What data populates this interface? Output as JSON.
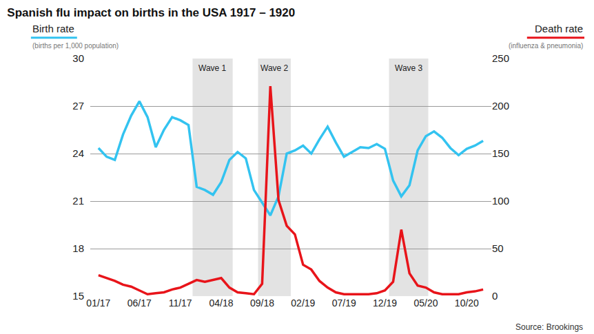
{
  "chart_data": {
    "type": "line",
    "title": "Spanish flu impact on births in the USA 1917 – 1920",
    "source": "Source: Brookings",
    "categories": [
      "01/17",
      null,
      null,
      null,
      null,
      "06/17",
      null,
      null,
      null,
      null,
      "11/17",
      null,
      null,
      null,
      null,
      "04/18",
      null,
      null,
      null,
      null,
      "09/18",
      null,
      null,
      null,
      null,
      "02/19",
      null,
      null,
      null,
      null,
      "07/19",
      null,
      null,
      null,
      null,
      "12/19",
      null,
      null,
      null,
      null,
      "05/20",
      null,
      null,
      null,
      null,
      "10/20",
      null,
      null
    ],
    "series": [
      {
        "name": "Birth rate",
        "subtitle": "(births per 1,000 population)",
        "color": "#33c3f0",
        "axis": "y",
        "values": [
          24.35,
          23.8,
          23.6,
          25.2,
          26.4,
          27.3,
          26.3,
          24.4,
          25.5,
          26.3,
          26.1,
          25.8,
          21.9,
          21.7,
          21.4,
          22.2,
          23.6,
          24.1,
          23.7,
          21.7,
          20.9,
          20.1,
          21.3,
          24.0,
          24.2,
          24.5,
          24.0,
          24.9,
          25.7,
          24.7,
          23.8,
          24.1,
          24.4,
          24.35,
          24.6,
          24.3,
          22.3,
          21.3,
          22.0,
          24.2,
          25.1,
          25.4,
          25.0,
          24.35,
          23.9,
          24.3,
          24.5,
          24.8
        ]
      },
      {
        "name": "Death rate",
        "subtitle": "(influenza & pneumonia)",
        "color": "#e8141a",
        "axis": "y2",
        "values": [
          22,
          19,
          16,
          12,
          10,
          6,
          2,
          3,
          4,
          7,
          9,
          13,
          17,
          15,
          17,
          19,
          9,
          4,
          3,
          2,
          13,
          221,
          101,
          74,
          65,
          33,
          28,
          16,
          9,
          4,
          2,
          2,
          2,
          2,
          3,
          6,
          15,
          70,
          24,
          11,
          9,
          4,
          2,
          2,
          2,
          4,
          5,
          7
        ]
      }
    ],
    "ylim": [
      15,
      30
    ],
    "yticks": [
      15,
      18,
      21,
      24,
      27,
      30
    ],
    "y2lim": [
      0,
      250
    ],
    "y2ticks": [
      0,
      50,
      100,
      150,
      200,
      250
    ],
    "grid": true,
    "annotations": [
      {
        "text": "Wave 1",
        "x0": 11.5,
        "x1": 16.4
      },
      {
        "text": "Wave 2",
        "x0": 19.5,
        "x1": 23.5
      },
      {
        "text": "Wave 3",
        "x0": 35.5,
        "x1": 40.3
      }
    ]
  }
}
